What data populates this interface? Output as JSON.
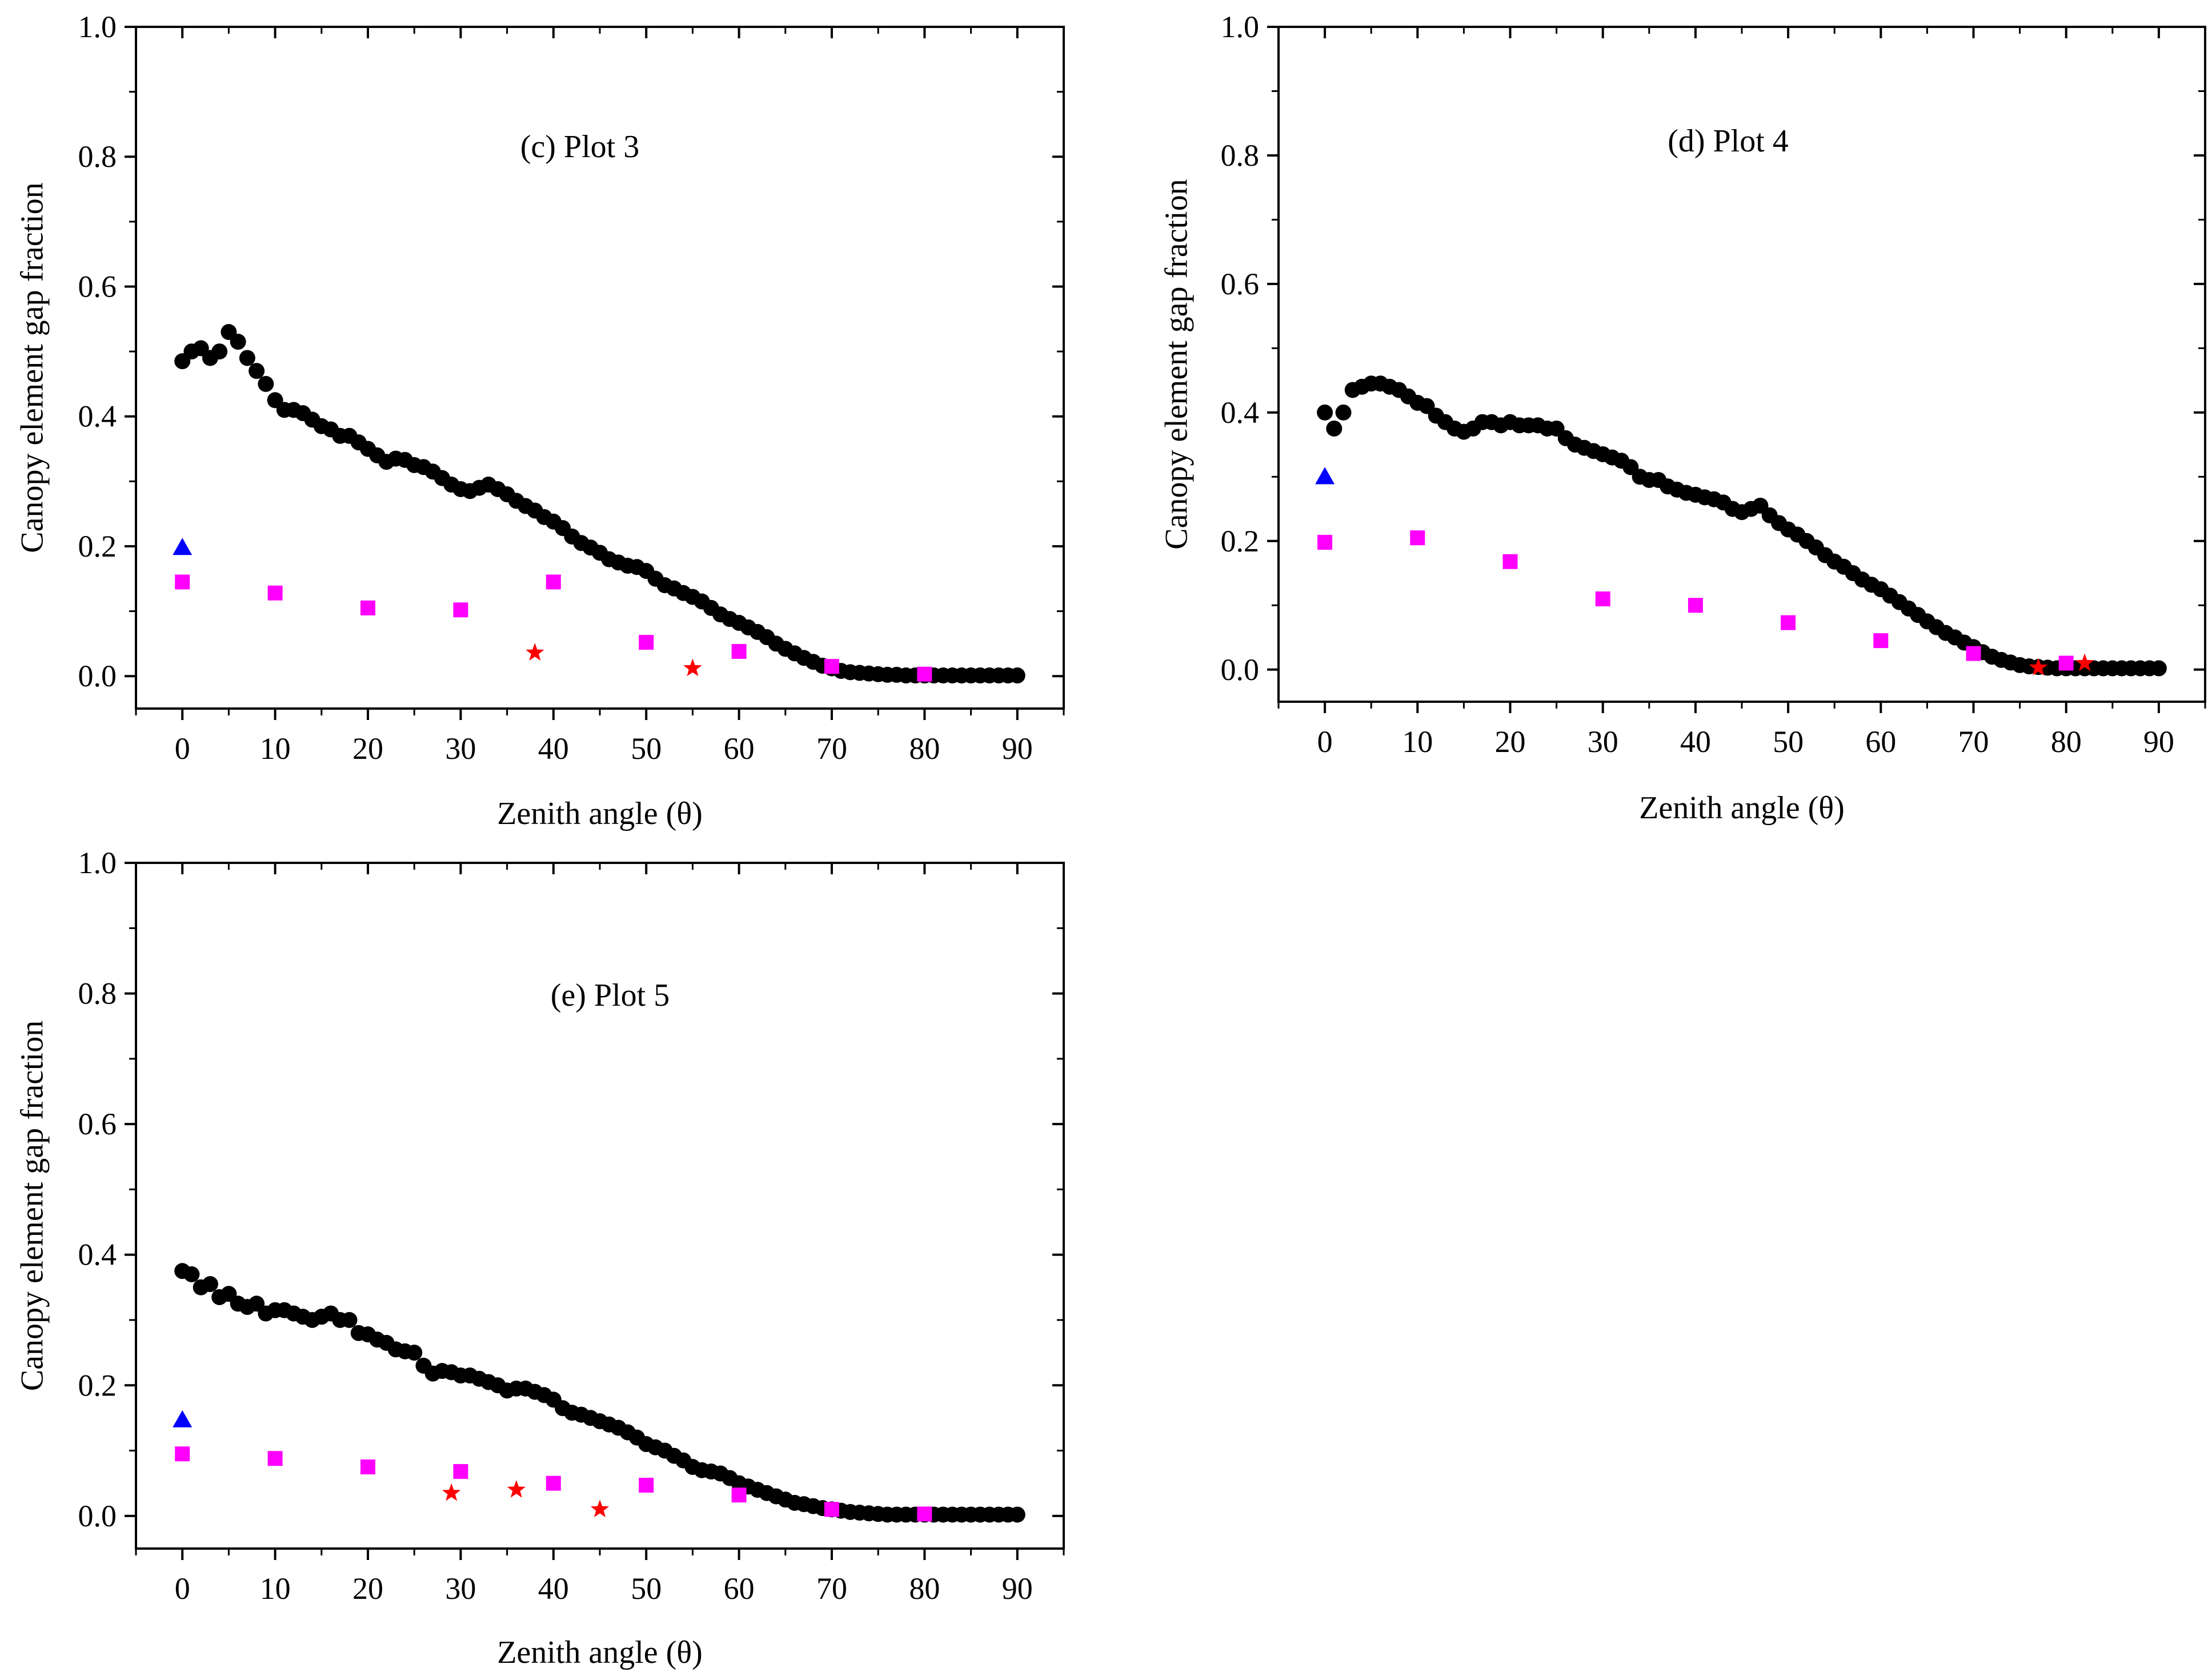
{
  "colors": {
    "gap_curve": "#000000",
    "square": "#ff00ff",
    "triangle": "#0000ff",
    "star": "#ff0000"
  },
  "chart_data": [
    {
      "type": "scatter",
      "title": "(c)  Plot 3",
      "xlabel": "Zenith angle (θ)",
      "ylabel": "Canopy element gap fraction",
      "xlim": [
        -5,
        95
      ],
      "ylim": [
        -0.05,
        1.0
      ],
      "xticks": [
        "0",
        "10",
        "20",
        "30",
        "40",
        "50",
        "60",
        "70",
        "80",
        "90"
      ],
      "yticks": [
        "0.0",
        "0.2",
        "0.4",
        "0.6",
        "0.8",
        "1.0"
      ],
      "series": [
        {
          "name": "gap_curve",
          "marker": "circle",
          "x": [
            0,
            1,
            2,
            3,
            4,
            5,
            6,
            7,
            8,
            9,
            10,
            11,
            12,
            13,
            14,
            15,
            16,
            17,
            18,
            19,
            20,
            21,
            22,
            23,
            24,
            25,
            26,
            27,
            28,
            29,
            30,
            31,
            32,
            33,
            34,
            35,
            36,
            37,
            38,
            39,
            40,
            41,
            42,
            43,
            44,
            45,
            46,
            47,
            48,
            49,
            50,
            51,
            52,
            53,
            54,
            55,
            56,
            57,
            58,
            59,
            60,
            61,
            62,
            63,
            64,
            65,
            66,
            67,
            68,
            69,
            70,
            71,
            72,
            73,
            74,
            75,
            76,
            77,
            78,
            79,
            80,
            81,
            82,
            83,
            84,
            85,
            86,
            87,
            88,
            89,
            90
          ],
          "y": [
            0.485,
            0.5,
            0.505,
            0.49,
            0.5,
            0.53,
            0.515,
            0.49,
            0.47,
            0.45,
            0.425,
            0.41,
            0.41,
            0.405,
            0.395,
            0.385,
            0.38,
            0.37,
            0.37,
            0.36,
            0.35,
            0.34,
            0.33,
            0.335,
            0.333,
            0.325,
            0.322,
            0.315,
            0.305,
            0.295,
            0.288,
            0.285,
            0.29,
            0.295,
            0.288,
            0.28,
            0.27,
            0.262,
            0.255,
            0.245,
            0.238,
            0.228,
            0.215,
            0.205,
            0.198,
            0.19,
            0.18,
            0.175,
            0.17,
            0.168,
            0.162,
            0.15,
            0.14,
            0.135,
            0.128,
            0.122,
            0.115,
            0.105,
            0.095,
            0.088,
            0.082,
            0.075,
            0.068,
            0.06,
            0.05,
            0.042,
            0.035,
            0.028,
            0.022,
            0.016,
            0.012,
            0.008,
            0.006,
            0.005,
            0.004,
            0.003,
            0.002,
            0.002,
            0.001,
            0.001,
            0.001,
            0.001,
            0.001,
            0.001,
            0.001,
            0.001,
            0.001,
            0.001,
            0.001,
            0.001,
            0.001
          ]
        },
        {
          "name": "squares",
          "marker": "square",
          "x": [
            0,
            10,
            20,
            30,
            40,
            50,
            60,
            70,
            80
          ],
          "y": [
            0.145,
            0.128,
            0.105,
            0.102,
            0.145,
            0.052,
            0.038,
            0.015,
            0.003
          ]
        },
        {
          "name": "triangle",
          "marker": "triangle",
          "x": [
            0
          ],
          "y": [
            0.198
          ]
        },
        {
          "name": "stars",
          "marker": "star",
          "x": [
            38,
            55
          ],
          "y": [
            0.036,
            0.012
          ]
        }
      ]
    },
    {
      "type": "scatter",
      "title": "(d)  Plot 4",
      "xlabel": "Zenith angle (θ)",
      "ylabel": "Canopy element gap fraction",
      "xlim": [
        -5,
        95
      ],
      "ylim": [
        -0.05,
        1.0
      ],
      "xticks": [
        "0",
        "10",
        "20",
        "30",
        "40",
        "50",
        "60",
        "70",
        "80",
        "90"
      ],
      "yticks": [
        "0.0",
        "0.2",
        "0.4",
        "0.6",
        "0.8",
        "1.0"
      ],
      "series": [
        {
          "name": "gap_curve",
          "marker": "circle",
          "x": [
            0,
            1,
            2,
            3,
            4,
            5,
            6,
            7,
            8,
            9,
            10,
            11,
            12,
            13,
            14,
            15,
            16,
            17,
            18,
            19,
            20,
            21,
            22,
            23,
            24,
            25,
            26,
            27,
            28,
            29,
            30,
            31,
            32,
            33,
            34,
            35,
            36,
            37,
            38,
            39,
            40,
            41,
            42,
            43,
            44,
            45,
            46,
            47,
            48,
            49,
            50,
            51,
            52,
            53,
            54,
            55,
            56,
            57,
            58,
            59,
            60,
            61,
            62,
            63,
            64,
            65,
            66,
            67,
            68,
            69,
            70,
            71,
            72,
            73,
            74,
            75,
            76,
            77,
            78,
            79,
            80,
            81,
            82,
            83,
            84,
            85,
            86,
            87,
            88,
            89,
            90
          ],
          "y": [
            0.4,
            0.375,
            0.4,
            0.435,
            0.44,
            0.445,
            0.445,
            0.44,
            0.435,
            0.425,
            0.415,
            0.41,
            0.395,
            0.385,
            0.375,
            0.37,
            0.375,
            0.385,
            0.385,
            0.38,
            0.385,
            0.38,
            0.38,
            0.38,
            0.375,
            0.375,
            0.36,
            0.35,
            0.345,
            0.34,
            0.335,
            0.33,
            0.325,
            0.315,
            0.3,
            0.295,
            0.295,
            0.285,
            0.28,
            0.275,
            0.272,
            0.268,
            0.265,
            0.26,
            0.25,
            0.245,
            0.25,
            0.255,
            0.24,
            0.228,
            0.218,
            0.21,
            0.2,
            0.19,
            0.178,
            0.168,
            0.16,
            0.15,
            0.14,
            0.132,
            0.125,
            0.115,
            0.105,
            0.095,
            0.085,
            0.075,
            0.066,
            0.057,
            0.05,
            0.042,
            0.035,
            0.027,
            0.02,
            0.015,
            0.011,
            0.007,
            0.005,
            0.004,
            0.003,
            0.002,
            0.002,
            0.002,
            0.002,
            0.002,
            0.002,
            0.002,
            0.002,
            0.002,
            0.002,
            0.002,
            0.002
          ]
        },
        {
          "name": "squares",
          "marker": "square",
          "x": [
            0,
            10,
            20,
            30,
            40,
            50,
            60,
            70,
            80
          ],
          "y": [
            0.198,
            0.205,
            0.168,
            0.11,
            0.1,
            0.073,
            0.045,
            0.025,
            0.01
          ]
        },
        {
          "name": "triangle",
          "marker": "triangle",
          "x": [
            0
          ],
          "y": [
            0.3
          ]
        },
        {
          "name": "stars",
          "marker": "star",
          "x": [
            77,
            82
          ],
          "y": [
            0.003,
            0.01
          ]
        }
      ]
    },
    {
      "type": "scatter",
      "title": "(e)  Plot 5",
      "xlabel": "Zenith angle (θ)",
      "ylabel": "Canopy element gap fraction",
      "xlim": [
        -5,
        95
      ],
      "ylim": [
        -0.05,
        1.0
      ],
      "xticks": [
        "0",
        "10",
        "20",
        "30",
        "40",
        "50",
        "60",
        "70",
        "80",
        "90"
      ],
      "yticks": [
        "0.0",
        "0.2",
        "0.4",
        "0.6",
        "0.8",
        "1.0"
      ],
      "series": [
        {
          "name": "gap_curve",
          "marker": "circle",
          "x": [
            0,
            1,
            2,
            3,
            4,
            5,
            6,
            7,
            8,
            9,
            10,
            11,
            12,
            13,
            14,
            15,
            16,
            17,
            18,
            19,
            20,
            21,
            22,
            23,
            24,
            25,
            26,
            27,
            28,
            29,
            30,
            31,
            32,
            33,
            34,
            35,
            36,
            37,
            38,
            39,
            40,
            41,
            42,
            43,
            44,
            45,
            46,
            47,
            48,
            49,
            50,
            51,
            52,
            53,
            54,
            55,
            56,
            57,
            58,
            59,
            60,
            61,
            62,
            63,
            64,
            65,
            66,
            67,
            68,
            69,
            70,
            71,
            72,
            73,
            74,
            75,
            76,
            77,
            78,
            79,
            80,
            81,
            82,
            83,
            84,
            85,
            86,
            87,
            88,
            89,
            90
          ],
          "y": [
            0.375,
            0.37,
            0.35,
            0.355,
            0.335,
            0.34,
            0.325,
            0.32,
            0.325,
            0.31,
            0.315,
            0.315,
            0.31,
            0.305,
            0.3,
            0.305,
            0.31,
            0.3,
            0.3,
            0.28,
            0.278,
            0.27,
            0.265,
            0.255,
            0.252,
            0.25,
            0.23,
            0.218,
            0.222,
            0.22,
            0.215,
            0.215,
            0.21,
            0.205,
            0.2,
            0.192,
            0.195,
            0.195,
            0.19,
            0.185,
            0.178,
            0.165,
            0.158,
            0.155,
            0.15,
            0.145,
            0.14,
            0.135,
            0.128,
            0.12,
            0.11,
            0.105,
            0.1,
            0.092,
            0.085,
            0.075,
            0.07,
            0.068,
            0.065,
            0.058,
            0.05,
            0.045,
            0.04,
            0.035,
            0.03,
            0.025,
            0.02,
            0.018,
            0.015,
            0.012,
            0.01,
            0.008,
            0.006,
            0.005,
            0.004,
            0.003,
            0.002,
            0.002,
            0.002,
            0.002,
            0.002,
            0.002,
            0.002,
            0.002,
            0.002,
            0.002,
            0.002,
            0.002,
            0.002,
            0.002,
            0.002
          ]
        },
        {
          "name": "squares",
          "marker": "square",
          "x": [
            0,
            10,
            20,
            30,
            40,
            50,
            60,
            70,
            80
          ],
          "y": [
            0.095,
            0.088,
            0.075,
            0.068,
            0.05,
            0.047,
            0.032,
            0.01,
            0.003
          ]
        },
        {
          "name": "triangle",
          "marker": "triangle",
          "x": [
            0
          ],
          "y": [
            0.147
          ]
        },
        {
          "name": "stars",
          "marker": "star",
          "x": [
            29,
            36,
            45
          ],
          "y": [
            0.035,
            0.04,
            0.01
          ]
        }
      ]
    }
  ]
}
